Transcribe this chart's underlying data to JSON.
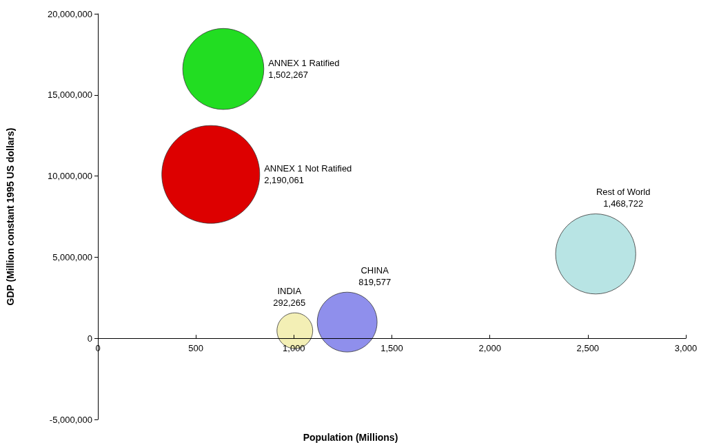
{
  "chart_data": {
    "type": "bubble",
    "xlabel": "Population (Millions)",
    "ylabel": "GDP (Million constant 1995 US dollars)",
    "xlim": [
      0,
      3000
    ],
    "xticks": [
      0,
      500,
      {
        "value": 1000,
        "label": "1,000"
      },
      {
        "value": 1500,
        "label": "1,500"
      },
      {
        "value": 2000,
        "label": "2,000"
      },
      {
        "value": 2500,
        "label": "2,500"
      },
      {
        "value": 3000,
        "label": "3,000"
      }
    ],
    "ylim": [
      -5000000,
      20000000
    ],
    "yticks": [
      {
        "value": -5000000,
        "label": "-5,000,000"
      },
      0,
      {
        "value": 5000000,
        "label": "5,000,000"
      },
      {
        "value": 10000000,
        "label": "10,000,000"
      },
      {
        "value": 15000000,
        "label": "15,000,000"
      },
      {
        "value": 20000000,
        "label": "20,000,000"
      }
    ],
    "grid": false,
    "legend": false,
    "series": [
      {
        "name": "ANNEX 1 Ratified",
        "color": "#22dd22",
        "x": [
          640
        ],
        "values": [
          16600000
        ],
        "sizes": [
          1502267
        ],
        "value_labels": [
          "1,502,267"
        ]
      },
      {
        "name": "ANNEX 1 Not Ratified",
        "color": "#dd0000",
        "x": [
          576
        ],
        "values": [
          10100000
        ],
        "sizes": [
          2190061
        ],
        "value_labels": [
          "2,190,061"
        ]
      },
      {
        "name": "INDIA",
        "color": "#f3efb5",
        "x": [
          1005
        ],
        "values": [
          470000
        ],
        "sizes": [
          292265
        ],
        "value_labels": [
          "292,265"
        ]
      },
      {
        "name": "CHINA",
        "color": "#8f8fec",
        "x": [
          1272
        ],
        "values": [
          1000000
        ],
        "sizes": [
          819577
        ],
        "value_labels": [
          "819,577"
        ]
      },
      {
        "name": "Rest of World",
        "color": "#b8e4e4",
        "x": [
          2540
        ],
        "values": [
          5200000
        ],
        "sizes": [
          1468722
        ],
        "value_labels": [
          "1,468,722"
        ]
      }
    ]
  }
}
